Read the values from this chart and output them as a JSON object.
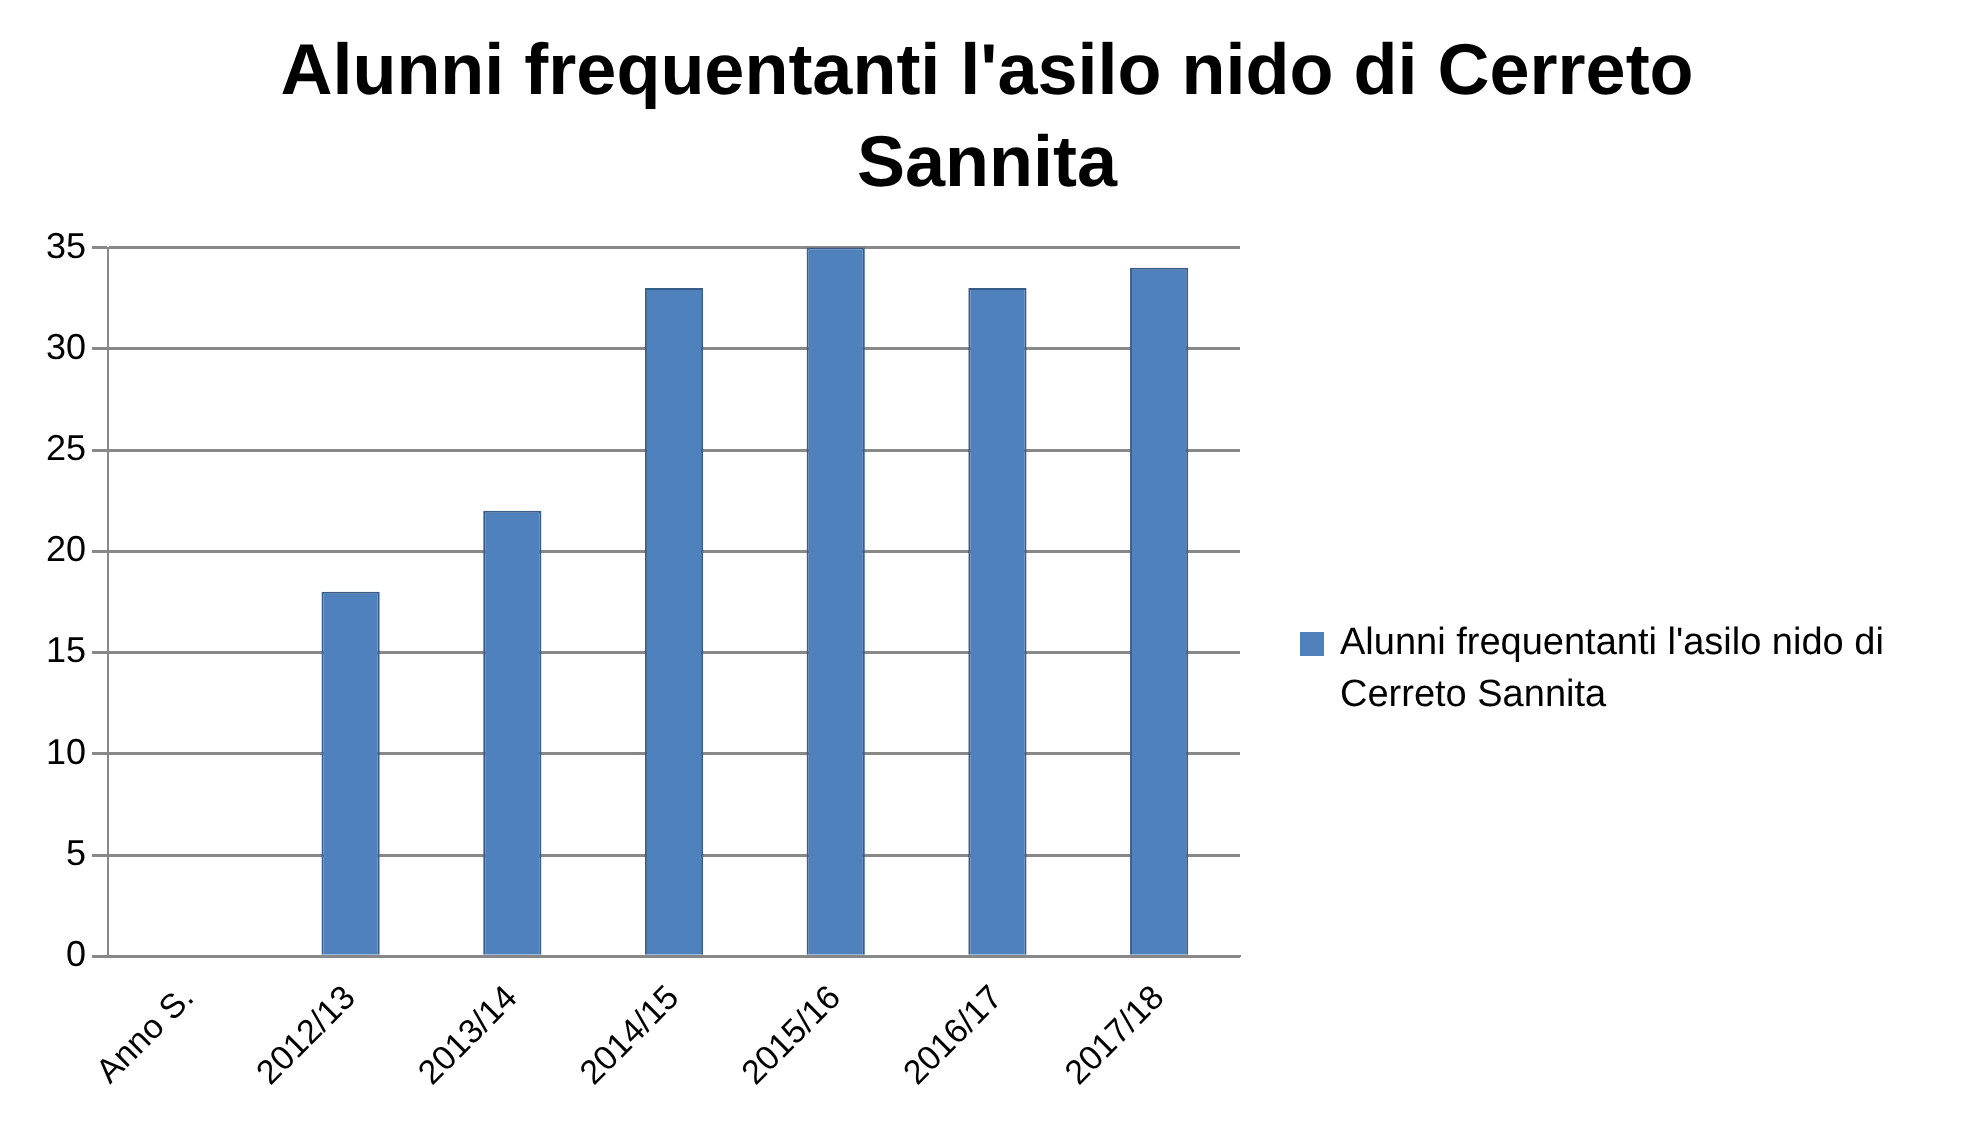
{
  "chart_data": {
    "type": "bar",
    "title": "Alunni frequentanti l'asilo nido di Cerreto Sannita",
    "categories": [
      "Anno S.",
      "2012/13",
      "2013/14",
      "2014/15",
      "2015/16",
      "2016/17",
      "2017/18"
    ],
    "series": [
      {
        "name": "Alunni frequentanti l'asilo nido di Cerreto Sannita",
        "color": "#4f81bd",
        "values": [
          null,
          18,
          22,
          33,
          35,
          33,
          34
        ]
      }
    ],
    "ylim": [
      0,
      35
    ],
    "yticks": [
      0,
      5,
      10,
      15,
      20,
      25,
      30,
      35
    ],
    "grid": "y",
    "legend": "right"
  }
}
